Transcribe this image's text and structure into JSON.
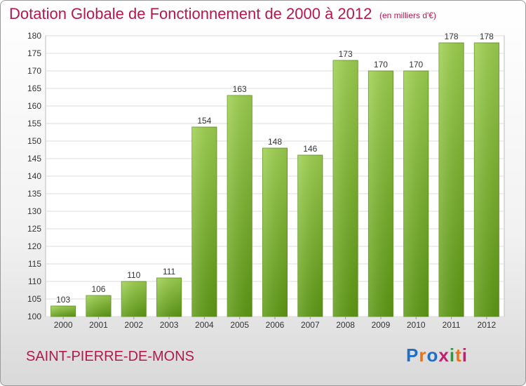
{
  "header": {
    "title": "Dotation Globale de Fonctionnement de 2000 à 2012",
    "unit_note": "(en milliers d'€)"
  },
  "footer": {
    "commune": "SAINT-PIERRE-DE-MONS",
    "logo_text": "Proxiti",
    "logo_colors": [
      "#1f6fc4",
      "#e8731a",
      "#1f6fc4",
      "#c41f6f",
      "#2a9d3a",
      "#e8731a",
      "#c41f6f"
    ]
  },
  "chart_data": {
    "type": "bar",
    "title": "Dotation Globale de Fonctionnement de 2000 à 2012",
    "categories": [
      "2000",
      "2001",
      "2002",
      "2003",
      "2004",
      "2005",
      "2006",
      "2007",
      "2008",
      "2009",
      "2010",
      "2011",
      "2012"
    ],
    "values": [
      103,
      106,
      110,
      111,
      154,
      163,
      148,
      146,
      173,
      170,
      170,
      178,
      178
    ],
    "ylim": [
      100,
      180
    ],
    "yticks": [
      100,
      105,
      110,
      115,
      120,
      125,
      130,
      135,
      140,
      145,
      150,
      155,
      160,
      165,
      170,
      175,
      180
    ],
    "grid": true,
    "bar_color": "#7dbb33",
    "xlabel": "",
    "ylabel": ""
  }
}
